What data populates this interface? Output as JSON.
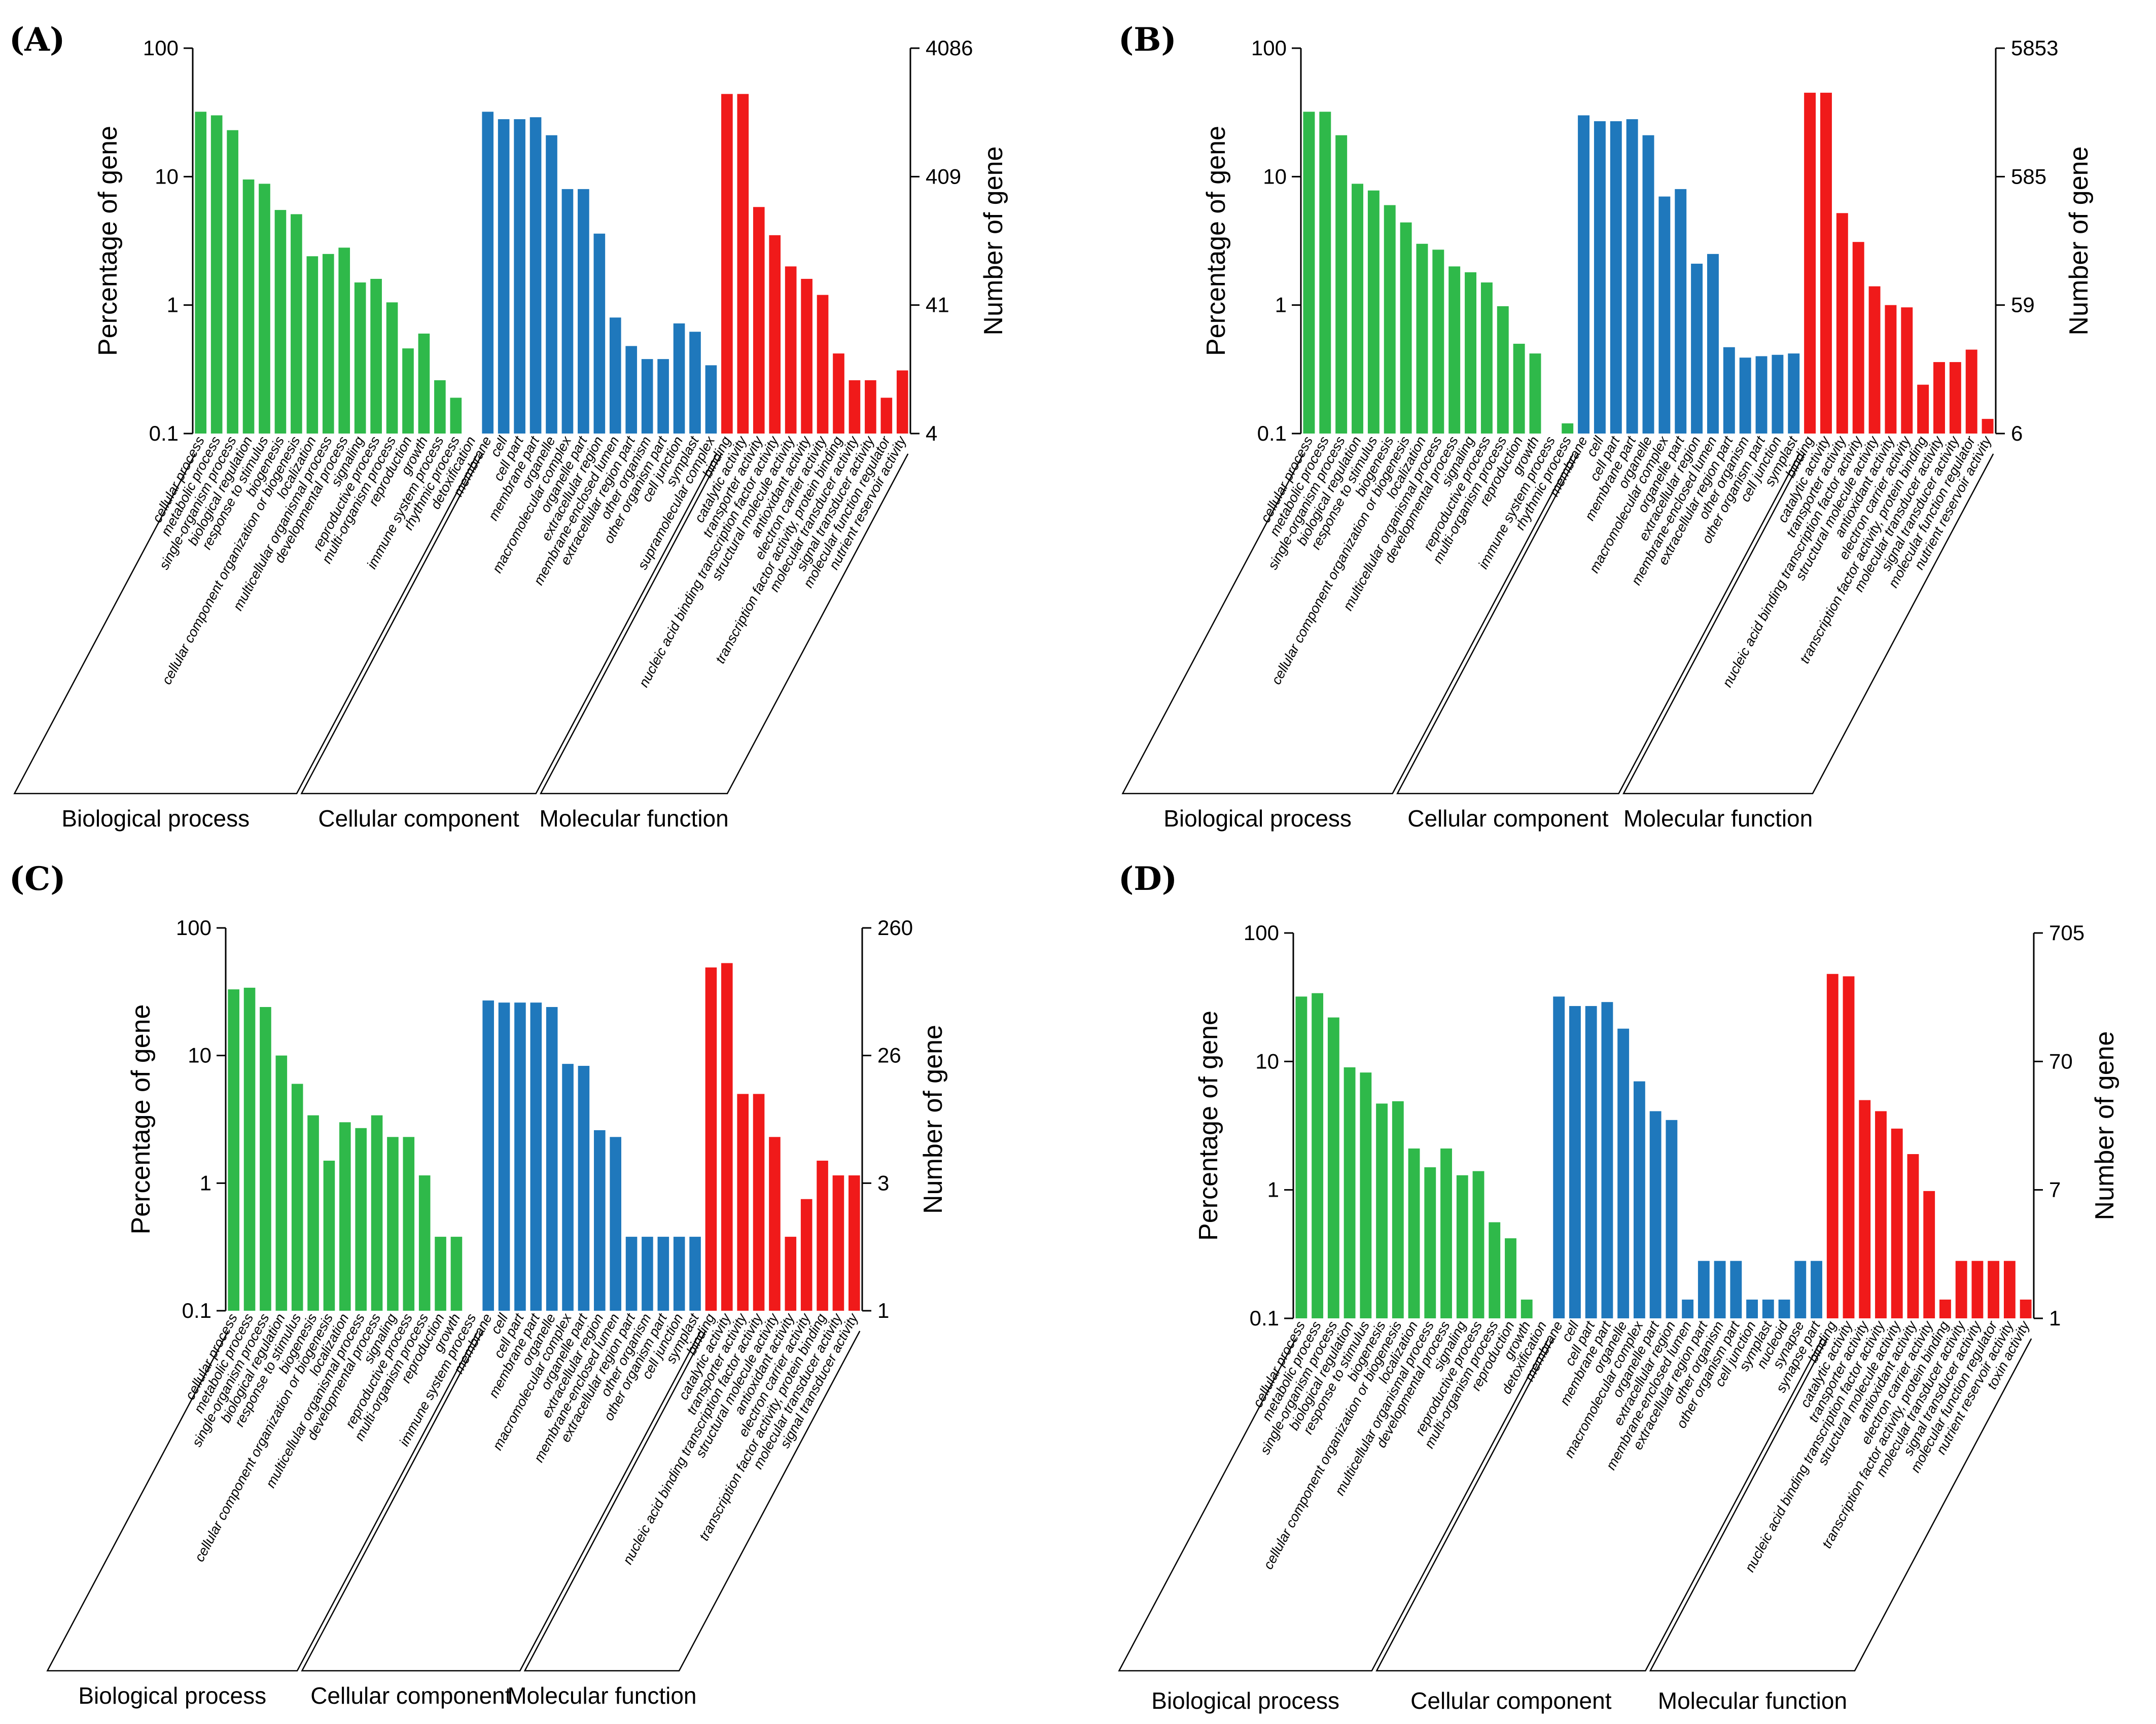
{
  "colors": {
    "bp": "#2fb94a",
    "cc": "#1f78bc",
    "mf": "#f01a1a"
  },
  "chart_data": [
    {
      "type": "bar",
      "panel": "(A)",
      "ylabel": "Percentage of gene",
      "y2label": "Number of gene",
      "ylim": [
        0.1,
        100
      ],
      "yscale": "log",
      "yticks": [
        "100",
        "10",
        "1",
        "0.1"
      ],
      "y2ticks": [
        "4086",
        "409",
        "41",
        "4"
      ],
      "groups": [
        "Biological process",
        "Cellular component",
        "Molecular function"
      ],
      "categories": [
        "cellular process",
        "metabolic process",
        "single-organism process",
        "biological regulation",
        "response to stimulus",
        "biogenesis",
        "cellular component organization or biogenesis",
        "localization",
        "multicellular organismal process",
        "developmental process",
        "signaling",
        "reproductive process",
        "multi-organism process",
        "reproduction",
        "growth",
        "immune system process",
        "rhythmic process",
        "detoxification",
        "membrane",
        "cell",
        "cell part",
        "membrane part",
        "organelle",
        "macromolecular complex",
        "organelle part",
        "extracellular region",
        "membrane-enclosed lumen",
        "extracellular region part",
        "other organism",
        "other organism part",
        "cell junction",
        "symplast",
        "supramolecular complex",
        "binding",
        "catalytic activity",
        "transporter activity",
        "nucleic acid binding transcription factor activity",
        "structural molecule activity",
        "antioxidant activity",
        "electron carrier activity",
        "transcription factor activity, protein binding",
        "molecular transducer activity",
        "signal transducer activity",
        "molecular function regulator",
        "nutrient reservoir activity"
      ],
      "category_groups": [
        0,
        0,
        0,
        0,
        0,
        0,
        0,
        0,
        0,
        0,
        0,
        0,
        0,
        0,
        0,
        0,
        0,
        0,
        1,
        1,
        1,
        1,
        1,
        1,
        1,
        1,
        1,
        1,
        1,
        1,
        1,
        1,
        1,
        2,
        2,
        2,
        2,
        2,
        2,
        2,
        2,
        2,
        2,
        2,
        2
      ],
      "values": [
        32,
        30,
        23,
        9.5,
        8.8,
        5.5,
        5.1,
        2.4,
        2.5,
        2.8,
        1.5,
        1.6,
        1.05,
        0.46,
        0.6,
        0.26,
        0.19,
        null,
        32,
        28,
        28,
        29,
        21,
        8,
        8,
        3.6,
        0.8,
        0.48,
        0.38,
        0.38,
        0.72,
        0.62,
        0.34,
        44,
        44,
        5.8,
        3.5,
        2.0,
        1.6,
        1.2,
        0.42,
        0.26,
        0.26,
        0.19,
        0.31
      ]
    },
    {
      "type": "bar",
      "panel": "(B)",
      "ylabel": "Percentage of gene",
      "y2label": "Number of gene",
      "ylim": [
        0.1,
        100
      ],
      "yscale": "log",
      "yticks": [
        "100",
        "10",
        "1",
        "0.1"
      ],
      "y2ticks": [
        "5853",
        "585",
        "59",
        "6"
      ],
      "groups": [
        "Biological process",
        "Cellular component",
        "Molecular function"
      ],
      "categories": [
        "cellular process",
        "metabolic process",
        "single-organism process",
        "biological regulation",
        "response to stimulus",
        "biogenesis",
        "cellular component organization or biogenesis",
        "localization",
        "multicellular organismal process",
        "developmental process",
        "signaling",
        "reproductive process",
        "multi-organism process",
        "reproduction",
        "growth",
        "immune system process",
        "rhythmic process",
        "membrane",
        "cell",
        "cell part",
        "membrane part",
        "organelle",
        "macromolecular complex",
        "organelle part",
        "extracellular region",
        "membrane-enclosed lumen",
        "extracellular region part",
        "other organism",
        "other organism part",
        "cell junction",
        "symplast",
        "binding",
        "catalytic activity",
        "transporter activity",
        "nucleic acid binding transcription factor activity",
        "structural molecule activity",
        "antioxidant activity",
        "electron carrier activity",
        "transcription factor activity, protein binding",
        "molecular transducer activity",
        "signal transducer activity",
        "molecular function regulator",
        "nutrient reservoir activity"
      ],
      "category_groups": [
        0,
        0,
        0,
        0,
        0,
        0,
        0,
        0,
        0,
        0,
        0,
        0,
        0,
        0,
        0,
        0,
        0,
        1,
        1,
        1,
        1,
        1,
        1,
        1,
        1,
        1,
        1,
        1,
        1,
        1,
        1,
        2,
        2,
        2,
        2,
        2,
        2,
        2,
        2,
        2,
        2,
        2,
        2
      ],
      "values": [
        32,
        32,
        21,
        8.8,
        7.8,
        6,
        4.4,
        3.0,
        2.7,
        2.0,
        1.8,
        1.5,
        0.98,
        0.5,
        0.42,
        null,
        0.12,
        30,
        27,
        27,
        28,
        21,
        7,
        8,
        2.1,
        2.5,
        0.47,
        0.39,
        0.4,
        0.41,
        0.42,
        45,
        45,
        5.2,
        3.1,
        1.4,
        1.0,
        0.96,
        0.24,
        0.36,
        0.36,
        0.45,
        0.13
      ]
    },
    {
      "type": "bar",
      "panel": "(C)",
      "ylabel": "Percentage of gene",
      "y2label": "Number of gene",
      "ylim": [
        0.1,
        100
      ],
      "yscale": "log",
      "yticks": [
        "100",
        "10",
        "1",
        "0.1"
      ],
      "y2ticks": [
        "260",
        "26",
        "3",
        "1"
      ],
      "groups": [
        "Biological process",
        "Cellular component",
        "Molecular function"
      ],
      "categories": [
        "cellular process",
        "metabolic process",
        "single-organism process",
        "biological regulation",
        "response to stimulus",
        "biogenesis",
        "cellular component organization or biogenesis",
        "localization",
        "multicellular organismal process",
        "developmental process",
        "signaling",
        "reproductive process",
        "multi-organism process",
        "reproduction",
        "growth",
        "immune system process",
        "membrane",
        "cell",
        "cell part",
        "membrane part",
        "organelle",
        "macromolecular complex",
        "organelle part",
        "extracellular region",
        "membrane-enclosed lumen",
        "extracellular region part",
        "other organism",
        "other organism part",
        "cell junction",
        "symplast",
        "binding",
        "catalytic activity",
        "transporter activity",
        "nucleic acid binding transcription factor activity",
        "structural molecule activity",
        "antioxidant activity",
        "electron carrier activity",
        "transcription factor activity, protein binding",
        "molecular transducer activity",
        "signal transducer activity"
      ],
      "category_groups": [
        0,
        0,
        0,
        0,
        0,
        0,
        0,
        0,
        0,
        0,
        0,
        0,
        0,
        0,
        0,
        0,
        1,
        1,
        1,
        1,
        1,
        1,
        1,
        1,
        1,
        1,
        1,
        1,
        1,
        1,
        2,
        2,
        2,
        2,
        2,
        2,
        2,
        2,
        2,
        2
      ],
      "values": [
        33,
        34,
        24,
        10,
        6,
        3.4,
        1.5,
        3.0,
        2.7,
        3.4,
        2.3,
        2.3,
        1.15,
        0.38,
        0.38,
        null,
        27,
        26,
        26,
        26,
        24,
        8.6,
        8.3,
        2.6,
        2.3,
        0.38,
        0.38,
        0.38,
        0.38,
        0.38,
        49,
        53,
        5,
        5,
        2.3,
        0.38,
        0.75,
        1.5,
        1.15,
        1.15
      ]
    },
    {
      "type": "bar",
      "panel": "(D)",
      "ylabel": "Percentage of gene",
      "y2label": "Number of gene",
      "ylim": [
        0.1,
        100
      ],
      "yscale": "log",
      "yticks": [
        "100",
        "10",
        "1",
        "0.1"
      ],
      "y2ticks": [
        "705",
        "70",
        "7",
        "1"
      ],
      "groups": [
        "Biological process",
        "Cellular component",
        "Molecular function"
      ],
      "categories": [
        "cellular process",
        "metabolic process",
        "single-organism process",
        "biological regulation",
        "response to stimulus",
        "biogenesis",
        "cellular component organization or biogenesis",
        "localization",
        "multicellular organismal process",
        "developmental process",
        "signaling",
        "reproductive process",
        "multi-organism process",
        "reproduction",
        "growth",
        "detoxification",
        "membrane",
        "cell",
        "cell part",
        "membrane part",
        "organelle",
        "macromolecular complex",
        "organelle part",
        "extracellular region",
        "membrane-enclosed lumen",
        "extracellular region part",
        "other organism",
        "other organism part",
        "cell junction",
        "symplast",
        "nucleoid",
        "synapse",
        "synapse part",
        "binding",
        "catalytic activity",
        "transporter activity",
        "nucleic acid binding transcription factor activity",
        "structural molecule activity",
        "antioxidant activity",
        "electron carrier activity",
        "transcription factor activity, protein binding",
        "molecular transducer activity",
        "signal transducer activity",
        "molecular function regulator",
        "nutrient reservoir activity",
        "toxin activity"
      ],
      "category_groups": [
        0,
        0,
        0,
        0,
        0,
        0,
        0,
        0,
        0,
        0,
        0,
        0,
        0,
        0,
        0,
        0,
        1,
        1,
        1,
        1,
        1,
        1,
        1,
        1,
        1,
        1,
        1,
        1,
        1,
        1,
        1,
        1,
        1,
        2,
        2,
        2,
        2,
        2,
        2,
        2,
        2,
        2,
        2,
        2,
        2,
        2
      ],
      "values": [
        32,
        34,
        22,
        9,
        8.2,
        4.7,
        4.9,
        2.1,
        1.5,
        2.1,
        1.3,
        1.4,
        0.56,
        0.42,
        0.14,
        null,
        32,
        27,
        27,
        29,
        18,
        7,
        4.1,
        3.5,
        0.14,
        0.28,
        0.28,
        0.28,
        0.14,
        0.14,
        0.14,
        0.28,
        0.28,
        48,
        46,
        5,
        4.1,
        3,
        1.9,
        0.98,
        0.14,
        0.28,
        0.28,
        0.28,
        0.28,
        0.14
      ]
    }
  ]
}
